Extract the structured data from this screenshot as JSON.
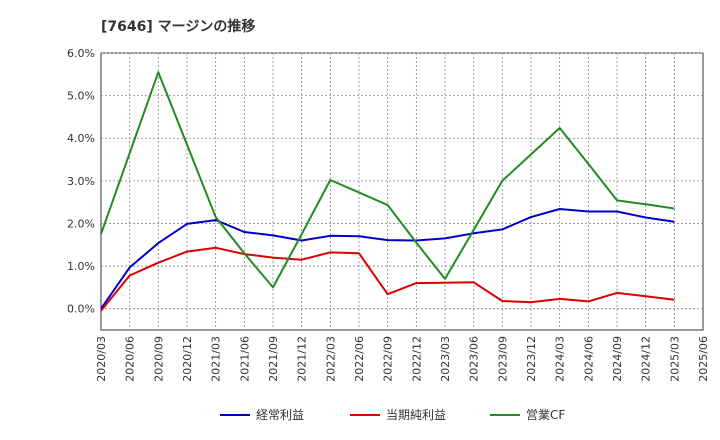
{
  "chart_data": {
    "type": "line",
    "title": "[7646]  マージンの推移",
    "xlabel": "",
    "ylabel": "",
    "ylim": [
      -0.5,
      6.0
    ],
    "yticks": [
      "6.0%",
      "5.0%",
      "4.0%",
      "3.0%",
      "2.0%",
      "1.0%",
      "0.0%"
    ],
    "ytick_values": [
      6,
      5,
      4,
      3,
      2,
      1,
      0
    ],
    "categories": [
      "2020/03",
      "2020/06",
      "2020/09",
      "2020/12",
      "2021/03",
      "2021/06",
      "2021/09",
      "2021/12",
      "2022/03",
      "2022/06",
      "2022/09",
      "2022/12",
      "2023/03",
      "2023/06",
      "2023/09",
      "2023/12",
      "2024/03",
      "2024/06",
      "2024/09",
      "2024/12",
      "2025/03",
      "2025/06"
    ],
    "grid": true,
    "legend_position": "bottom",
    "series": [
      {
        "name": "経常利益",
        "color": "#0000cc",
        "values": [
          0.0,
          0.97,
          1.54,
          1.99,
          2.08,
          1.8,
          1.72,
          1.6,
          1.71,
          1.7,
          1.61,
          1.6,
          1.65,
          1.77,
          1.86,
          2.15,
          2.34,
          2.28,
          2.28,
          2.14,
          2.04,
          null
        ]
      },
      {
        "name": "当期純利益",
        "color": "#dd0000",
        "values": [
          -0.05,
          0.78,
          1.08,
          1.34,
          1.43,
          1.28,
          1.2,
          1.15,
          1.32,
          1.3,
          0.34,
          0.6,
          0.61,
          0.62,
          0.18,
          0.15,
          0.23,
          0.17,
          0.37,
          0.29,
          0.21,
          null
        ]
      },
      {
        "name": "営業CF",
        "color": "#228b22",
        "values": [
          1.75,
          3.65,
          5.55,
          3.85,
          2.15,
          1.3,
          0.5,
          1.75,
          3.02,
          2.73,
          2.43,
          1.55,
          0.7,
          1.85,
          3.0,
          3.62,
          4.24,
          3.4,
          2.54,
          2.45,
          2.35,
          null
        ]
      }
    ]
  }
}
